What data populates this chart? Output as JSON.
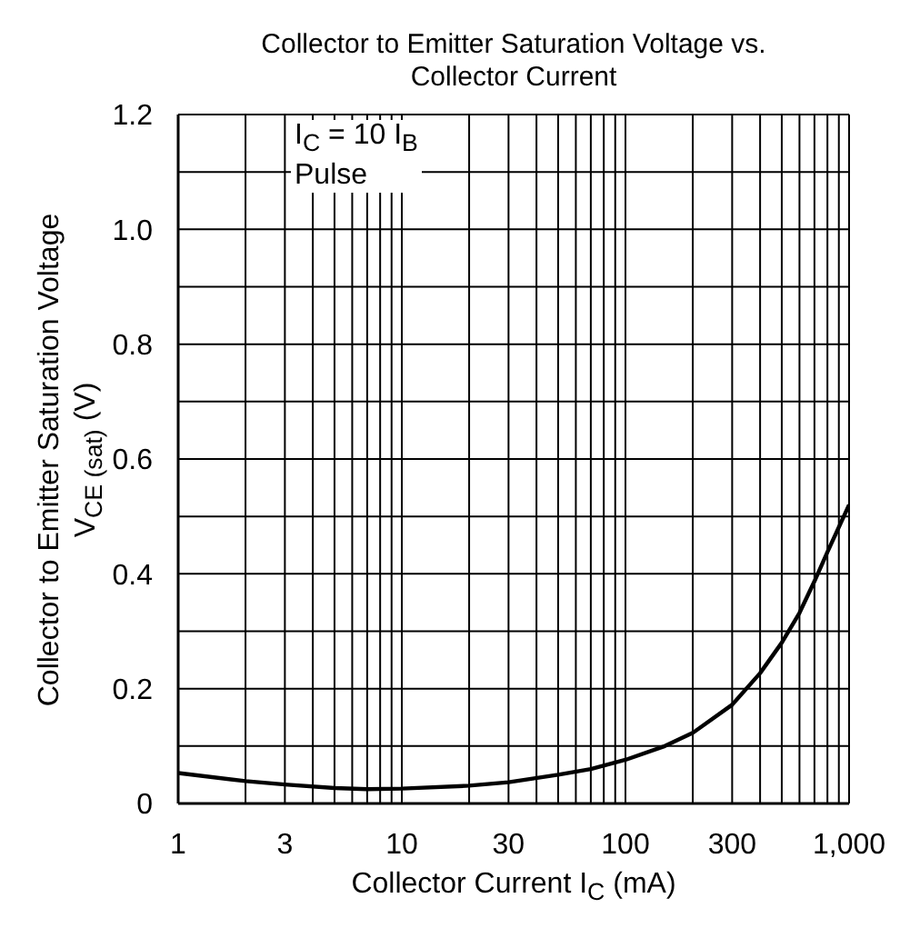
{
  "chart_data": {
    "type": "line",
    "title": "Collector to Emitter Saturation Voltage vs. Collector Current",
    "xlabel": "Collector Current  I$_{C}$  (mA)",
    "ylabel": "Collector to Emitter Saturation Voltage\nV$_{CE (sat)}$  (V)",
    "annotations": [
      "I$_{C}$ = 10 I$_{B}$",
      "Pulse"
    ],
    "x": [
      1,
      2,
      3,
      5,
      7,
      10,
      20,
      30,
      50,
      70,
      100,
      150,
      200,
      300,
      400,
      500,
      600,
      700,
      800,
      1000
    ],
    "series": [
      {
        "color": "#000000",
        "values": [
          0.053,
          0.039,
          0.033,
          0.027,
          0.025,
          0.026,
          0.031,
          0.037,
          0.05,
          0.06,
          0.076,
          0.1,
          0.123,
          0.172,
          0.227,
          0.28,
          0.332,
          0.387,
          0.438,
          0.52
        ]
      }
    ],
    "log": "x",
    "xlim": [
      1,
      1000
    ],
    "ylim": [
      0,
      1.2
    ],
    "xticks": [
      1,
      {
        "value": 2,
        "label": null
      },
      3,
      {
        "value": 4,
        "label": null
      },
      {
        "value": 5,
        "label": null
      },
      {
        "value": 6,
        "label": null
      },
      {
        "value": 7,
        "label": null
      },
      {
        "value": 8,
        "label": null
      },
      {
        "value": 9,
        "label": null
      },
      10,
      {
        "value": 20,
        "label": null
      },
      30,
      {
        "value": 40,
        "label": null
      },
      {
        "value": 50,
        "label": null
      },
      {
        "value": 60,
        "label": null
      },
      {
        "value": 70,
        "label": null
      },
      {
        "value": 80,
        "label": null
      },
      {
        "value": 90,
        "label": null
      },
      100,
      {
        "value": 200,
        "label": null
      },
      300,
      {
        "value": 400,
        "label": null
      },
      {
        "value": 500,
        "label": null
      },
      {
        "value": 600,
        "label": null
      },
      {
        "value": 700,
        "label": null
      },
      {
        "value": 800,
        "label": null
      },
      {
        "value": 900,
        "label": null
      },
      {
        "value": 1000,
        "label": "1,000"
      }
    ],
    "yticks": [
      0,
      {
        "value": 0.1,
        "label": null
      },
      {
        "value": 0.2,
        "label": "0.2"
      },
      {
        "value": 0.3,
        "label": null
      },
      {
        "value": 0.4,
        "label": "0.4"
      },
      {
        "value": 0.5,
        "label": null
      },
      {
        "value": 0.6,
        "label": "0.6"
      },
      {
        "value": 0.7,
        "label": null
      },
      {
        "value": 0.8,
        "label": "0.8"
      },
      {
        "value": 0.9,
        "label": null
      },
      {
        "value": 1.0,
        "label": "1.0"
      },
      {
        "value": 1.1,
        "label": null
      },
      {
        "value": 1.2,
        "label": "1.2"
      }
    ],
    "grid": true,
    "legend": false,
    "marker": "none",
    "line_style": "solid"
  }
}
